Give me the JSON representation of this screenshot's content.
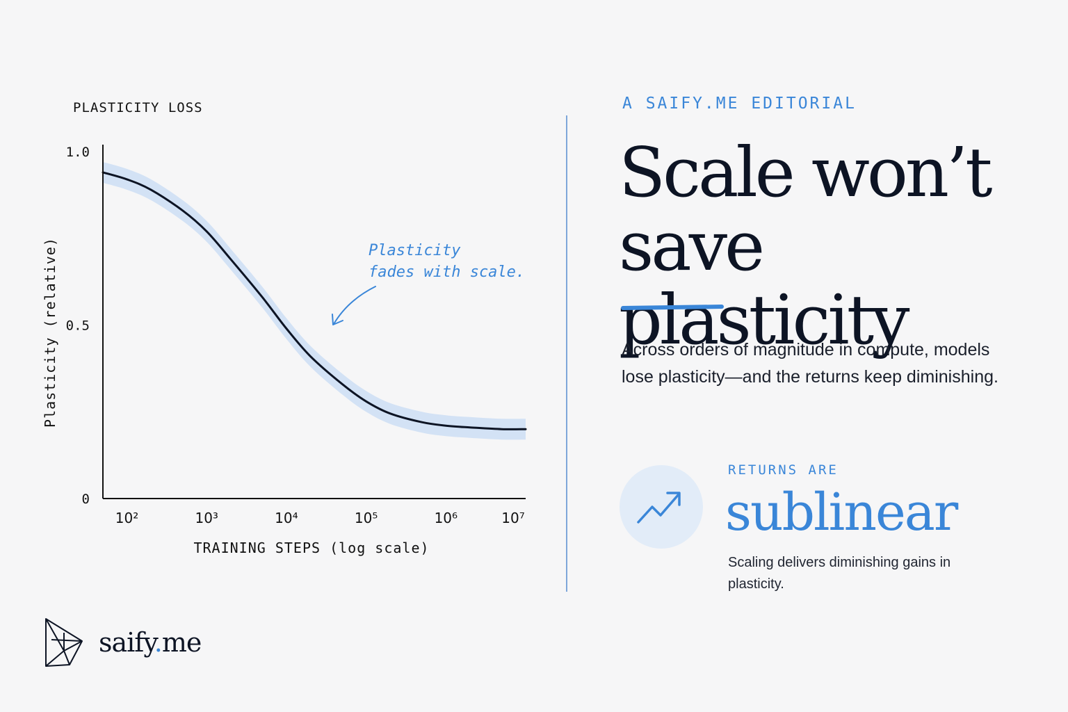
{
  "chart_data": {
    "type": "line",
    "title": "PLASTICITY LOSS",
    "xlabel": "TRAINING STEPS (log scale)",
    "ylabel": "Plasticity (relative)",
    "x_scale": "log",
    "xlim": [
      50,
      10000000
    ],
    "ylim": [
      0,
      1.0
    ],
    "x_tick_labels": [
      "10²",
      "10³",
      "10⁴",
      "10⁵",
      "10⁶",
      "10⁷"
    ],
    "x_tick_values": [
      100,
      1000,
      10000,
      100000,
      1000000,
      10000000
    ],
    "y_tick_labels": [
      "1.0",
      "0.5",
      "0"
    ],
    "y_tick_values": [
      1.0,
      0.5,
      0
    ],
    "grid": false,
    "series": [
      {
        "x": [
          50,
          100,
          200,
          500,
          1000,
          2000,
          5000,
          10000,
          20000,
          50000,
          100000,
          200000,
          500000,
          1000000,
          2000000,
          5000000,
          10000000
        ],
        "values": [
          0.94,
          0.92,
          0.89,
          0.83,
          0.77,
          0.69,
          0.58,
          0.49,
          0.41,
          0.33,
          0.28,
          0.245,
          0.22,
          0.21,
          0.205,
          0.2,
          0.2
        ],
        "band": 0.03,
        "color": "#0d1424",
        "band_color": "#d3e2f5"
      }
    ],
    "annotations": [
      {
        "text_lines": [
          "Plasticity",
          "fades with scale."
        ],
        "color": "#3a86d8"
      }
    ]
  },
  "editorial": {
    "kicker": "A SAIFY.ME EDITORIAL",
    "headline": "Scale won’t save plasticity",
    "lede": "Across orders of magnitude in compute, models lose plasticity—and the returns keep diminishing.",
    "stat_label": "RETURNS ARE",
    "stat_value": "sublinear",
    "stat_desc": "Scaling delivers diminishing gains in plasticity.",
    "stat_icon": "trend-up-icon"
  },
  "brand": {
    "name_part1": "saify",
    "dot": ".",
    "name_part2": "me",
    "icon": "polyhedron-logo-icon"
  },
  "colors": {
    "accent": "#3a86d8",
    "ink": "#0d1424",
    "background": "#f6f6f7",
    "band": "#d3e2f5",
    "icon_bg": "#e2ecf8"
  }
}
